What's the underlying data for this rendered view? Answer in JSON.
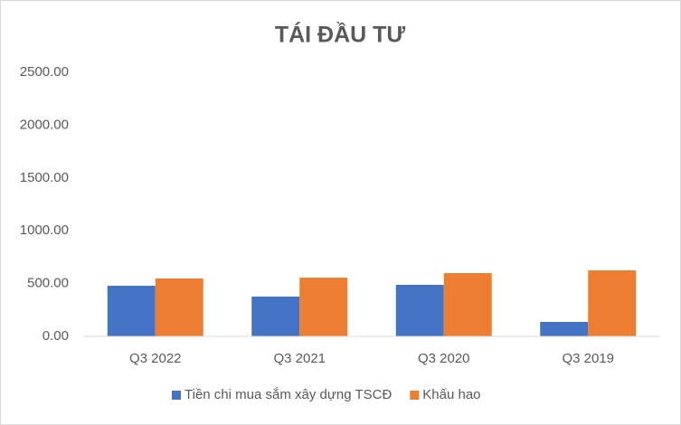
{
  "chart_data": {
    "type": "bar",
    "title": "TÁI ĐẦU TƯ",
    "categories": [
      "Q3 2022",
      "Q3 2021",
      "Q3 2020",
      "Q3 2019"
    ],
    "series": [
      {
        "name": "Tiền chi mua sắm xây dựng TSCĐ",
        "color": "#4472c4",
        "values": [
          479,
          377,
          488,
          137
        ]
      },
      {
        "name": "Khấu hao",
        "color": "#ed7d31",
        "values": [
          548,
          556,
          599,
          625
        ]
      }
    ],
    "ylim": [
      0,
      2500
    ],
    "yticks": [
      {
        "value": 0,
        "label": "0.00"
      },
      {
        "value": 500,
        "label": "500.00"
      },
      {
        "value": 1000,
        "label": "1000.00"
      },
      {
        "value": 1500,
        "label": "1500.00"
      },
      {
        "value": 2000,
        "label": "2000.00"
      },
      {
        "value": 2500,
        "label": "2500.00"
      }
    ],
    "legend": "bottom"
  }
}
